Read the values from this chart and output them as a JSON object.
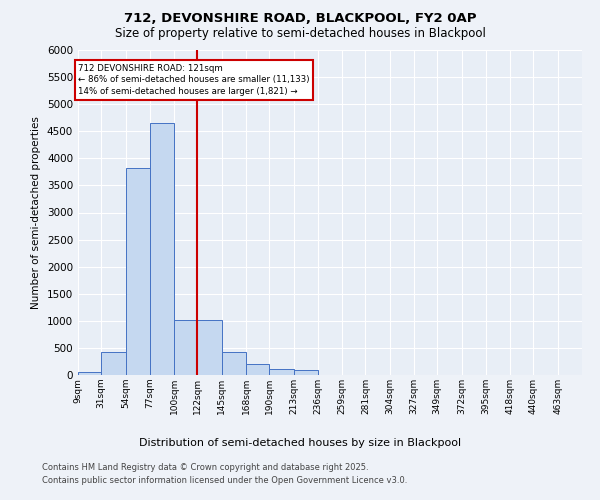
{
  "title1": "712, DEVONSHIRE ROAD, BLACKPOOL, FY2 0AP",
  "title2": "Size of property relative to semi-detached houses in Blackpool",
  "xlabel": "Distribution of semi-detached houses by size in Blackpool",
  "ylabel": "Number of semi-detached properties",
  "bins": [
    "9sqm",
    "31sqm",
    "54sqm",
    "77sqm",
    "100sqm",
    "122sqm",
    "145sqm",
    "168sqm",
    "190sqm",
    "213sqm",
    "236sqm",
    "259sqm",
    "281sqm",
    "304sqm",
    "327sqm",
    "349sqm",
    "372sqm",
    "395sqm",
    "418sqm",
    "440sqm",
    "463sqm"
  ],
  "bin_edges": [
    9,
    31,
    54,
    77,
    100,
    122,
    145,
    168,
    190,
    213,
    236,
    259,
    281,
    304,
    327,
    349,
    372,
    395,
    418,
    440,
    463
  ],
  "values": [
    50,
    430,
    3820,
    4650,
    1010,
    1010,
    430,
    200,
    110,
    100,
    0,
    0,
    0,
    0,
    0,
    0,
    0,
    0,
    0,
    0
  ],
  "bar_color": "#c5d8f0",
  "bar_edge_color": "#4472c4",
  "vline_x": 122,
  "vline_color": "#cc0000",
  "annotation_title": "712 DEVONSHIRE ROAD: 121sqm",
  "annotation_left": "← 86% of semi-detached houses are smaller (11,133)",
  "annotation_right": "14% of semi-detached houses are larger (1,821) →",
  "annotation_box_color": "#cc0000",
  "ylim": [
    0,
    6000
  ],
  "yticks": [
    0,
    500,
    1000,
    1500,
    2000,
    2500,
    3000,
    3500,
    4000,
    4500,
    5000,
    5500,
    6000
  ],
  "footer1": "Contains HM Land Registry data © Crown copyright and database right 2025.",
  "footer2": "Contains public sector information licensed under the Open Government Licence v3.0.",
  "bg_color": "#eef2f8",
  "plot_bg_color": "#e8eef6"
}
